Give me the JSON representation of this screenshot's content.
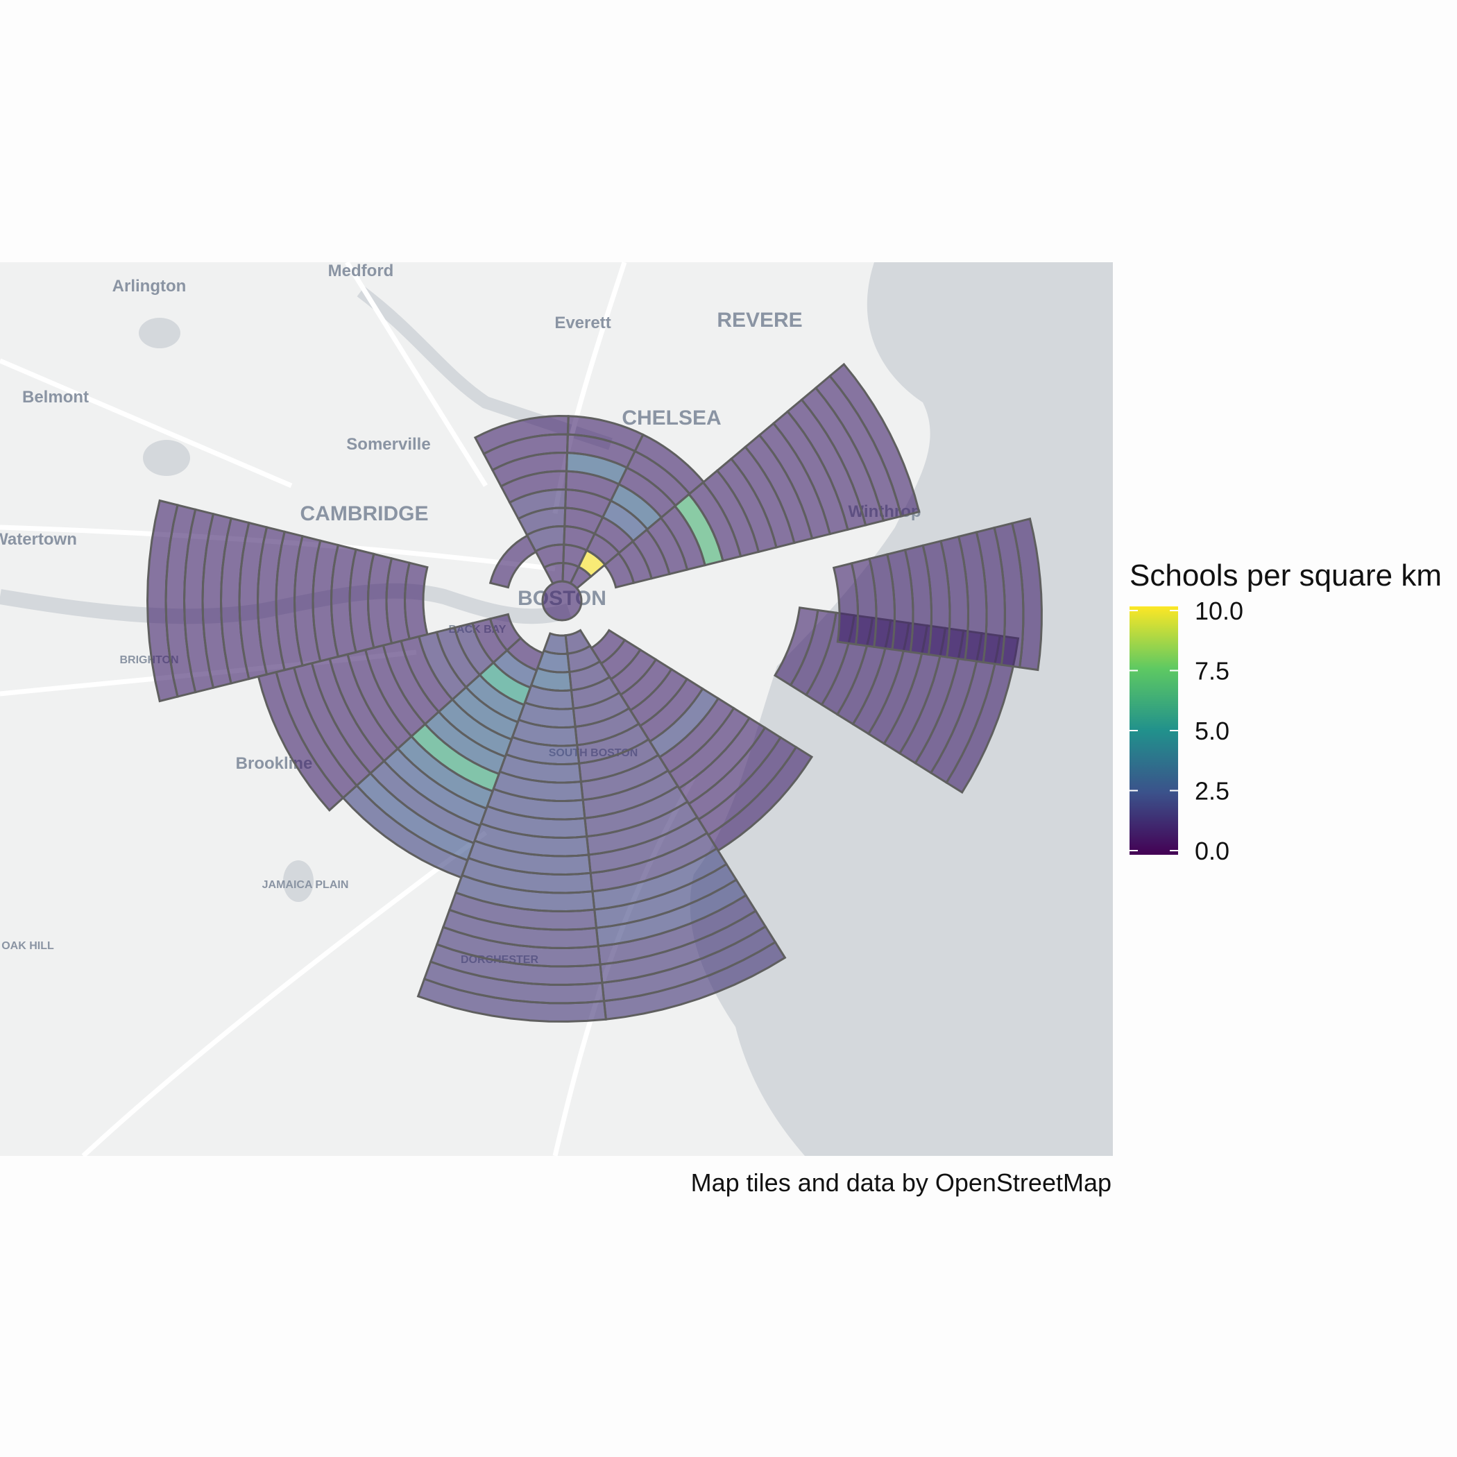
{
  "map": {
    "place_labels": [
      {
        "text": "Medford",
        "size": "sm"
      },
      {
        "text": "Arlington",
        "size": "sm"
      },
      {
        "text": "Everett",
        "size": "sm"
      },
      {
        "text": "REVERE",
        "size": "lg"
      },
      {
        "text": "Belmont",
        "size": "sm"
      },
      {
        "text": "CHELSEA",
        "size": "lg"
      },
      {
        "text": "Somerville",
        "size": "sm"
      },
      {
        "text": "CAMBRIDGE",
        "size": "lg"
      },
      {
        "text": "Watertown",
        "size": "sm"
      },
      {
        "text": "Winthrop",
        "size": "sm"
      },
      {
        "text": "BOSTON",
        "size": "lg"
      },
      {
        "text": "BRIGHTON",
        "size": "xs"
      },
      {
        "text": "Brookline",
        "size": "sm"
      },
      {
        "text": "SOUTH BOSTON",
        "size": "xs"
      },
      {
        "text": "JAMAICA PLAIN",
        "size": "xs"
      },
      {
        "text": "OAK HILL",
        "size": "xs"
      },
      {
        "text": "DORCHESTER",
        "size": "xs"
      },
      {
        "text": "BACK BAY",
        "size": "xs"
      }
    ],
    "colors": {
      "land": "#f0f1f1",
      "water": "#d4d8dc",
      "roads": "#ffffff",
      "outline": "#5f5f5f"
    },
    "fill_opacity": 0.6
  },
  "legend": {
    "title": "Schools per square km",
    "ticks": [
      "10.0",
      "7.5",
      "5.0",
      "2.5",
      "0.0"
    ],
    "range": [
      0,
      10
    ],
    "palette": [
      "#440154",
      "#3b528b",
      "#21918c",
      "#5ec962",
      "#fde725"
    ]
  },
  "caption": "Map tiles and data by OpenStreetMap",
  "chart_data": {
    "type": "heatmap",
    "value_name": "Schools per square km",
    "range": [
      0,
      10
    ],
    "sectors": [
      {
        "id": "W",
        "rings": [
          1,
          1,
          1,
          1,
          1,
          1,
          1,
          1,
          1,
          1,
          1,
          1,
          1,
          1,
          1
        ]
      },
      {
        "id": "WSW",
        "rings": [
          1,
          1,
          1.5,
          1.5,
          1.5,
          1,
          1,
          1,
          1,
          1,
          1,
          1,
          1,
          1
        ]
      },
      {
        "id": "SW",
        "rings": [
          1,
          2.5,
          5.5,
          3,
          3,
          3,
          3,
          6,
          3,
          2.5,
          2,
          2.5,
          2
        ]
      },
      {
        "id": "SSW",
        "rings": [
          2,
          2.5,
          3,
          2,
          2,
          2,
          2,
          2,
          2,
          2,
          2,
          2,
          2,
          2,
          2,
          1.5,
          1.5,
          1.5,
          1.5,
          1.5,
          1.5
        ]
      },
      {
        "id": "SSE",
        "rings": [
          1.5,
          1.5,
          1.5,
          1.5,
          1.5,
          1.5,
          1.5,
          1.5,
          1.5,
          1.5,
          1.5,
          1.5,
          1.5,
          1.5,
          2,
          2,
          2,
          1.5,
          1.5,
          1.5,
          1.5
        ]
      },
      {
        "id": "SE",
        "rings": [
          1,
          1,
          1,
          1,
          1,
          1,
          2,
          1,
          1,
          1,
          1,
          1,
          1
        ]
      },
      {
        "id": "E",
        "rings": [
          1,
          1,
          1,
          1,
          1,
          1,
          1,
          1,
          1,
          1,
          1,
          1
        ]
      },
      {
        "id": "ENE",
        "rings": [
          1,
          1,
          1,
          1,
          1,
          1,
          1,
          1,
          1,
          1,
          1
        ]
      },
      {
        "id": "NE",
        "rings": [
          1,
          1,
          1,
          1,
          1,
          6.5,
          1,
          1,
          1,
          1,
          1,
          1,
          1,
          1,
          1,
          1,
          1
        ]
      },
      {
        "id": "NNE",
        "rings": [
          1,
          10,
          1,
          1,
          2.5,
          3,
          1,
          1,
          1
        ]
      },
      {
        "id": "N",
        "rings": [
          1,
          1,
          1,
          1,
          1,
          1,
          3,
          1,
          1
        ]
      },
      {
        "id": "NW",
        "rings": [
          1,
          1,
          1.5,
          1.5,
          1.5,
          1,
          1,
          1,
          1
        ]
      },
      {
        "id": "WNW",
        "rings": [
          1
        ]
      }
    ]
  }
}
